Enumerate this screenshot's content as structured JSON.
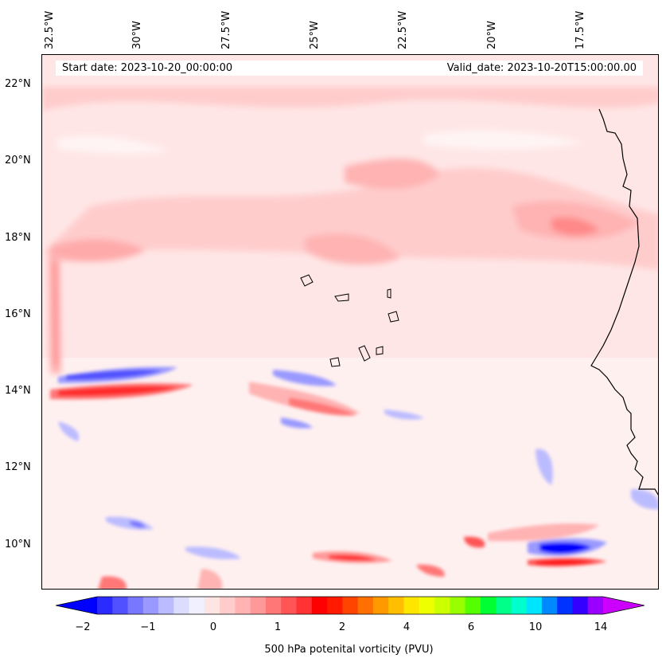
{
  "map": {
    "variable": "500 hPa potenital vorticity (PVU)",
    "start_date": "Start date: 2023-10-20_00:00:00",
    "valid_date": "Valid_date: 2023-10-20T15:00:00.00",
    "longitude_labels": [
      "32.5°W",
      "30°W",
      "27.5°W",
      "25°W",
      "22.5°W",
      "20°W",
      "17.5°W"
    ],
    "latitude_labels": [
      "22°N",
      "20°N",
      "18°N",
      "16°N",
      "14°N",
      "12°N",
      "10°N"
    ],
    "features": [
      "Cape Verde islands",
      "West African coastline"
    ]
  },
  "colorbar": {
    "tick_labels": [
      "−2",
      "−1",
      "0",
      "1",
      "2",
      "4",
      "6",
      "10",
      "14"
    ],
    "colors": [
      "#0000ff",
      "#2b2bff",
      "#5151ff",
      "#7777ff",
      "#9999ff",
      "#bbbbff",
      "#dcdcff",
      "#f0f0ff",
      "#ffe4e4",
      "#ffcccc",
      "#ffb3b3",
      "#ff9999",
      "#ff7777",
      "#ff5555",
      "#ff3333",
      "#ff0000",
      "#ff1a00",
      "#ff4400",
      "#ff7000",
      "#ff9900",
      "#ffbf00",
      "#ffe600",
      "#eeff00",
      "#ccff00",
      "#99ff00",
      "#55ff00",
      "#00ff33",
      "#00ff88",
      "#00ffcc",
      "#00e5ff",
      "#0088ff",
      "#0033ff",
      "#3300ff",
      "#9900ff",
      "#cc00ff"
    ]
  }
}
